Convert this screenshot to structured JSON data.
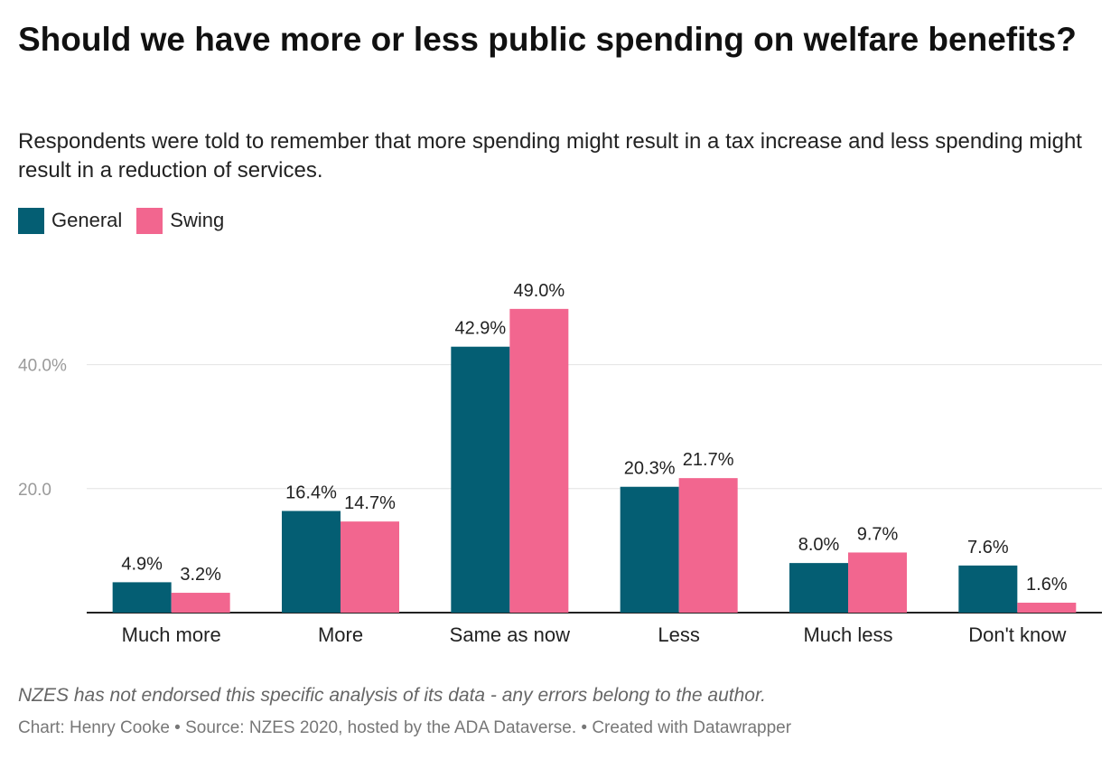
{
  "title": "Should we have more or less public spending on welfare benefits?",
  "subtitle": "Respondents were told to remember that more spending might result in a tax increase and less spending might result in a reduction of services.",
  "note": "NZES has not endorsed this specific analysis of its data - any errors belong to the author.",
  "credits": "Chart: Henry Cooke • Source: NZES 2020, hosted by the ADA Dataverse. • Created with Datawrapper",
  "legend": [
    {
      "label": "General",
      "color": "#045e73"
    },
    {
      "label": "Swing",
      "color": "#f2668f"
    }
  ],
  "chart_data": {
    "type": "bar",
    "categories": [
      "Much more",
      "More",
      "Same as now",
      "Less",
      "Much less",
      "Don't know"
    ],
    "series": [
      {
        "name": "General",
        "color": "#045e73",
        "values": [
          4.9,
          16.4,
          42.9,
          20.3,
          8.0,
          7.6
        ],
        "labels": [
          "4.9%",
          "16.4%",
          "42.9%",
          "20.3%",
          "8.0%",
          "7.6%"
        ]
      },
      {
        "name": "Swing",
        "color": "#f2668f",
        "values": [
          3.2,
          14.7,
          49.0,
          21.7,
          9.7,
          1.6
        ],
        "labels": [
          "3.2%",
          "14.7%",
          "49.0%",
          "21.7%",
          "9.7%",
          "1.6%"
        ]
      }
    ],
    "yticks": [
      20,
      40
    ],
    "ytick_labels": [
      "20.0",
      "40.0%"
    ],
    "ylim": [
      0,
      49
    ],
    "grid": true,
    "legend_position": "top-left",
    "xlabel": "",
    "ylabel": ""
  }
}
